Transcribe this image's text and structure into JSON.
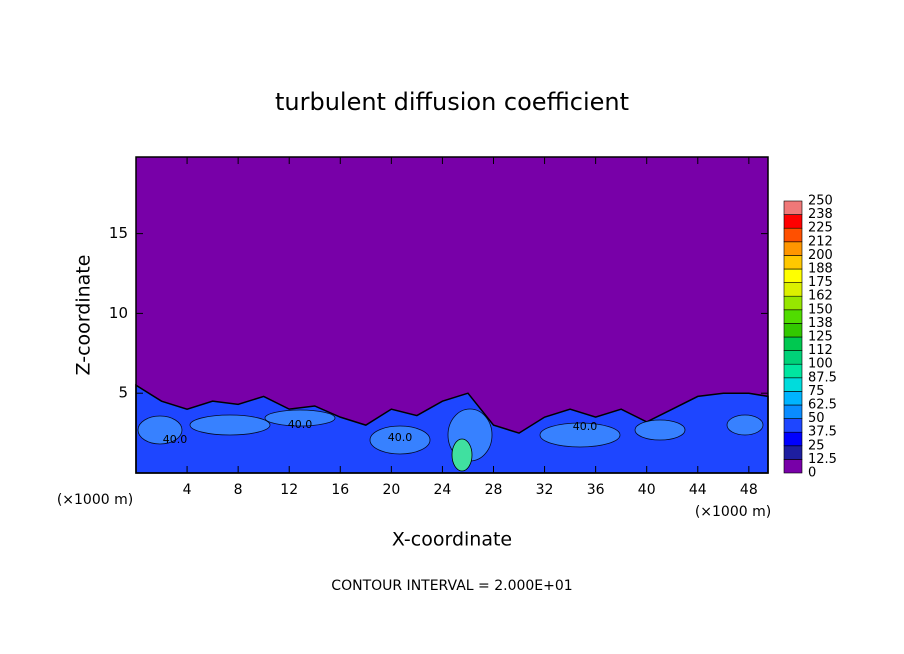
{
  "chart_data": {
    "type": "contour",
    "title": "turbulent diffusion coefficient",
    "xlabel": "X-coordinate",
    "ylabel": "Z-coordinate",
    "x_unit_left": "(×1000 m)",
    "x_unit_right": "(×1000 m)",
    "footer": "CONTOUR INTERVAL = 2.000E+01",
    "xlim": [
      0,
      49.5
    ],
    "ylim": [
      0,
      19.8
    ],
    "xticks": [
      4,
      8,
      12,
      16,
      20,
      24,
      28,
      32,
      36,
      40,
      44,
      48
    ],
    "yticks": [
      5,
      10,
      15
    ],
    "background_color": "#7800a8",
    "layer_color": "#1e46ff",
    "layer": {
      "x": [
        0,
        2,
        4,
        6,
        8,
        10,
        12,
        14,
        16,
        18,
        20,
        22,
        24,
        26,
        28,
        30,
        32,
        34,
        36,
        38,
        40,
        42,
        44,
        46,
        48,
        49.5
      ],
      "top": [
        5.5,
        4.5,
        4,
        4.5,
        4.3,
        4.8,
        4,
        4.2,
        3.5,
        3,
        4,
        3.6,
        4.5,
        5,
        3,
        2.5,
        3.5,
        4,
        3.5,
        4,
        3.2,
        4,
        4.8,
        5,
        5,
        4.8
      ]
    },
    "contour_labels": [
      {
        "value": 40,
        "label": "40.0"
      },
      {
        "value": 40,
        "label": "40.0"
      },
      {
        "value": 40,
        "label": "40.0"
      },
      {
        "value": 40,
        "label": "40.0"
      }
    ],
    "levels": [
      0,
      12.5,
      25,
      37.5,
      50,
      62.5,
      75,
      87.5,
      100,
      112,
      125,
      138,
      150,
      162,
      175,
      188,
      200,
      212,
      225,
      238,
      250
    ],
    "level_colors": [
      "#7800a8",
      "#1e1ea0",
      "#0000ff",
      "#1e46ff",
      "#0a8cff",
      "#00b4ff",
      "#00dcdc",
      "#00e6a0",
      "#00d278",
      "#00c850",
      "#32c800",
      "#50dc00",
      "#96e600",
      "#dcf000",
      "#ffff00",
      "#ffc800",
      "#ff9600",
      "#ff5000",
      "#ff0000",
      "#f07878"
    ]
  }
}
